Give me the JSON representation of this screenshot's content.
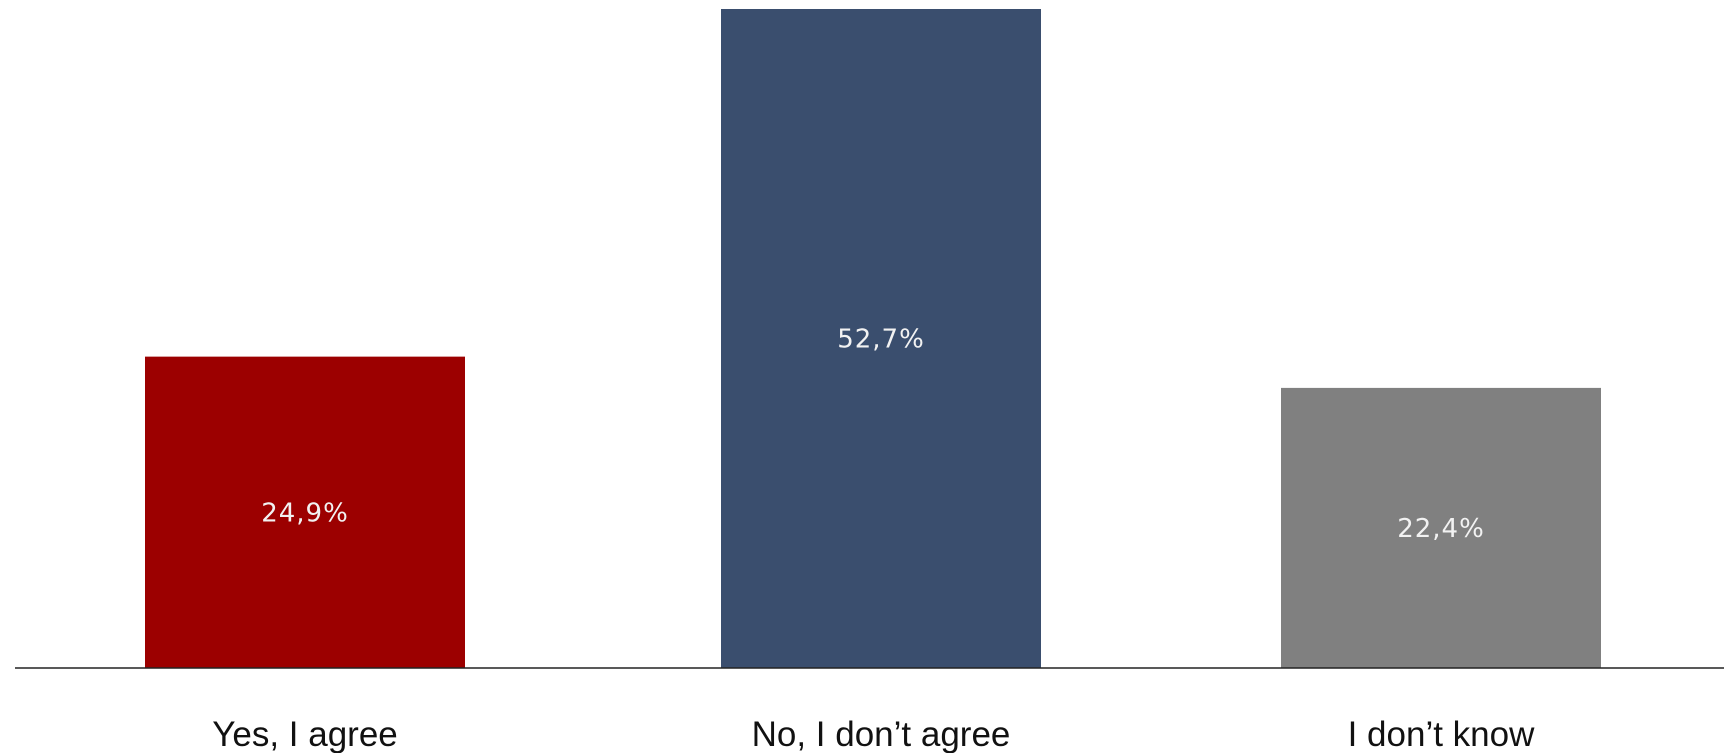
{
  "chart_data": {
    "type": "bar",
    "categories": [
      "Yes, I agree",
      "No, I don’t agree",
      "I don’t know"
    ],
    "values": [
      24.9,
      52.7,
      22.4
    ],
    "value_labels": [
      "24,9%",
      "52,7%",
      "22,4%"
    ],
    "colors": [
      "#9c0000",
      "#3a4e6e",
      "#808080"
    ],
    "title": "",
    "xlabel": "",
    "ylabel": "",
    "ylim": [
      0,
      52.7
    ],
    "grid": false,
    "legend": "none"
  }
}
